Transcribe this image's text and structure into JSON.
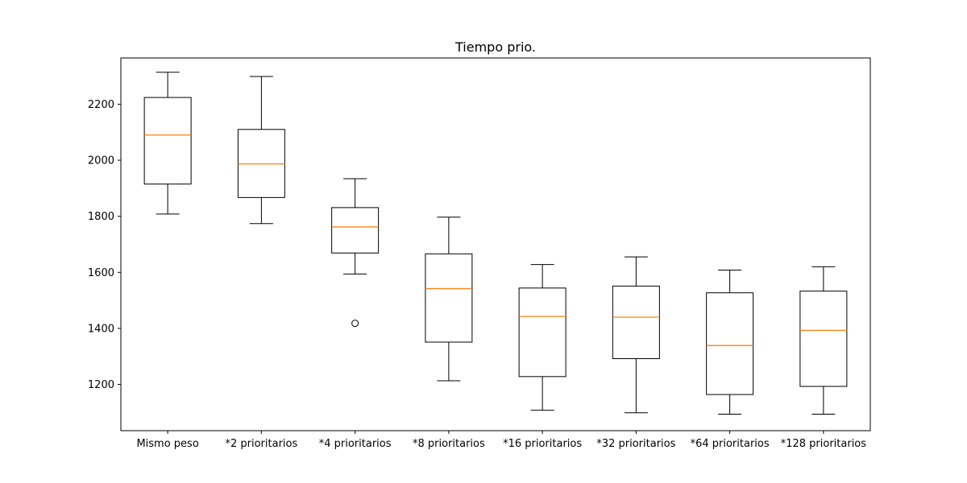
{
  "chart_data": {
    "type": "box",
    "title": "Tiempo prio.",
    "xlabel": "",
    "ylabel": "",
    "ylim": [
      1035,
      2365
    ],
    "yticks": [
      1200,
      1400,
      1600,
      1800,
      2000,
      2200
    ],
    "grid": false,
    "categories": [
      "Mismo peso",
      "*2 prioritarios",
      "*4 prioritarios",
      "*8 prioritarios",
      "*16 prioritarios",
      "*32 prioritarios",
      "*64 prioritarios",
      "*128 prioritarios"
    ],
    "boxes": [
      {
        "whisker_low": 1808,
        "q1": 1915,
        "median": 2090,
        "q3": 2224,
        "whisker_high": 2314,
        "outliers": []
      },
      {
        "whisker_low": 1774,
        "q1": 1867,
        "median": 1987,
        "q3": 2110,
        "whisker_high": 2299,
        "outliers": []
      },
      {
        "whisker_low": 1594,
        "q1": 1669,
        "median": 1762,
        "q3": 1831,
        "whisker_high": 1934,
        "outliers": [
          1418
        ]
      },
      {
        "whisker_low": 1213,
        "q1": 1351,
        "median": 1542,
        "q3": 1666,
        "whisker_high": 1797,
        "outliers": []
      },
      {
        "whisker_low": 1108,
        "q1": 1228,
        "median": 1443,
        "q3": 1544,
        "whisker_high": 1628,
        "outliers": []
      },
      {
        "whisker_low": 1099,
        "q1": 1292,
        "median": 1440,
        "q3": 1551,
        "whisker_high": 1655,
        "outliers": []
      },
      {
        "whisker_low": 1094,
        "q1": 1164,
        "median": 1339,
        "q3": 1527,
        "whisker_high": 1608,
        "outliers": []
      },
      {
        "whisker_low": 1094,
        "q1": 1193,
        "median": 1393,
        "q3": 1533,
        "whisker_high": 1620,
        "outliers": []
      }
    ],
    "colors": {
      "box": "#000000",
      "median": "#ff7f0e",
      "outlier": "#000000"
    }
  }
}
